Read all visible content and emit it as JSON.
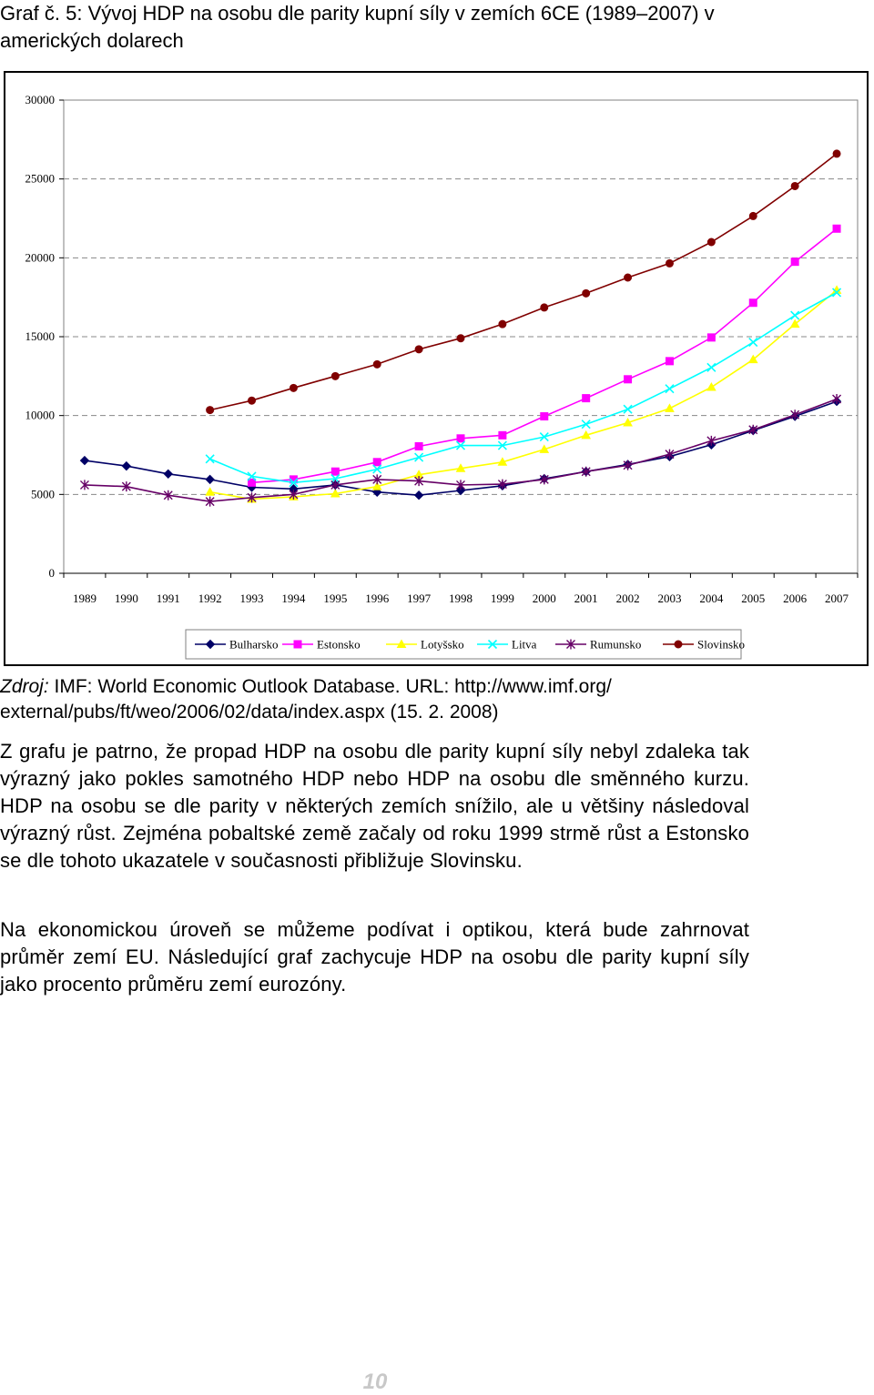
{
  "caption": "Graf č. 5: Vývoj HDP na osobu dle parity kupní síly v zemích 6CE (1989–2007) v amerických dolarech",
  "chart_data": {
    "type": "line",
    "title": "",
    "xlabel": "",
    "ylabel": "",
    "ylim": [
      0,
      30000
    ],
    "yticks": [
      0,
      5000,
      10000,
      15000,
      20000,
      25000,
      30000
    ],
    "grid": "horizontal dashed",
    "legend_position": "bottom",
    "categories": [
      "1989",
      "1990",
      "1991",
      "1992",
      "1993",
      "1994",
      "1995",
      "1996",
      "1997",
      "1998",
      "1999",
      "2000",
      "2001",
      "2002",
      "2003",
      "2004",
      "2005",
      "2006",
      "2007"
    ],
    "series": [
      {
        "name": "Bulharsko",
        "color": "#000066",
        "marker": "diamond",
        "values": [
          7150,
          6800,
          6300,
          5950,
          5450,
          5350,
          5600,
          5150,
          4950,
          5250,
          5550,
          6000,
          6450,
          6900,
          7400,
          8150,
          9050,
          9950,
          10900
        ]
      },
      {
        "name": "Estonsko",
        "color": "#ff00ff",
        "marker": "square",
        "values": [
          null,
          null,
          null,
          null,
          5750,
          5950,
          6450,
          7050,
          8050,
          8550,
          8750,
          9950,
          11100,
          12300,
          13450,
          14950,
          17150,
          19750,
          21850
        ]
      },
      {
        "name": "Lotyšsko",
        "color": "#ffff00",
        "marker": "triangle",
        "values": [
          null,
          null,
          null,
          5150,
          4700,
          4850,
          5050,
          5500,
          6250,
          6650,
          7050,
          7850,
          8750,
          9550,
          10450,
          11800,
          13550,
          15800,
          17950
        ]
      },
      {
        "name": "Litva",
        "color": "#00ffff",
        "marker": "x",
        "values": [
          null,
          null,
          null,
          7250,
          6150,
          5750,
          6000,
          6600,
          7350,
          8100,
          8100,
          8650,
          9450,
          10400,
          11700,
          13050,
          14650,
          16350,
          17800
        ]
      },
      {
        "name": "Rumunsko",
        "color": "#660066",
        "marker": "star",
        "values": [
          5600,
          5500,
          4950,
          4550,
          4800,
          5000,
          5600,
          5950,
          5850,
          5600,
          5650,
          5950,
          6450,
          6850,
          7550,
          8400,
          9100,
          10050,
          11050
        ]
      },
      {
        "name": "Slovinsko",
        "color": "#800000",
        "marker": "circle",
        "values": [
          null,
          null,
          null,
          10350,
          10950,
          11750,
          12500,
          13250,
          14200,
          14900,
          15800,
          16850,
          17750,
          18750,
          19650,
          21000,
          22650,
          24550,
          26600
        ]
      }
    ]
  },
  "source": {
    "lead": "Zdroj:",
    "line1": " IMF: World Economic Outlook Database. URL: http://www.imf.org/",
    "line2": "external/pubs/ft/weo/2006/02/data/index.aspx (15. 2. 2008)"
  },
  "paragraphs": [
    "Z grafu je patrno, že propad HDP na osobu dle parity kupní síly nebyl zdaleka tak výrazný jako pokles samotného HDP nebo HDP na osobu dle směnného kurzu. HDP na osobu se dle parity v některých zemích snížilo, ale u většiny následoval výrazný růst. Zejména pobaltské země začaly od roku 1999 strmě růst a Estonsko se dle tohoto ukazatele v současnosti přibližuje Slovinsku.",
    "Na ekonomickou úroveň se můžeme podívat i optikou, která bude zahrnovat průměr zemí EU. Následující graf zachycuje HDP na osobu dle parity kupní síly jako procento průměru zemí eurozóny."
  ],
  "page_number": "10"
}
